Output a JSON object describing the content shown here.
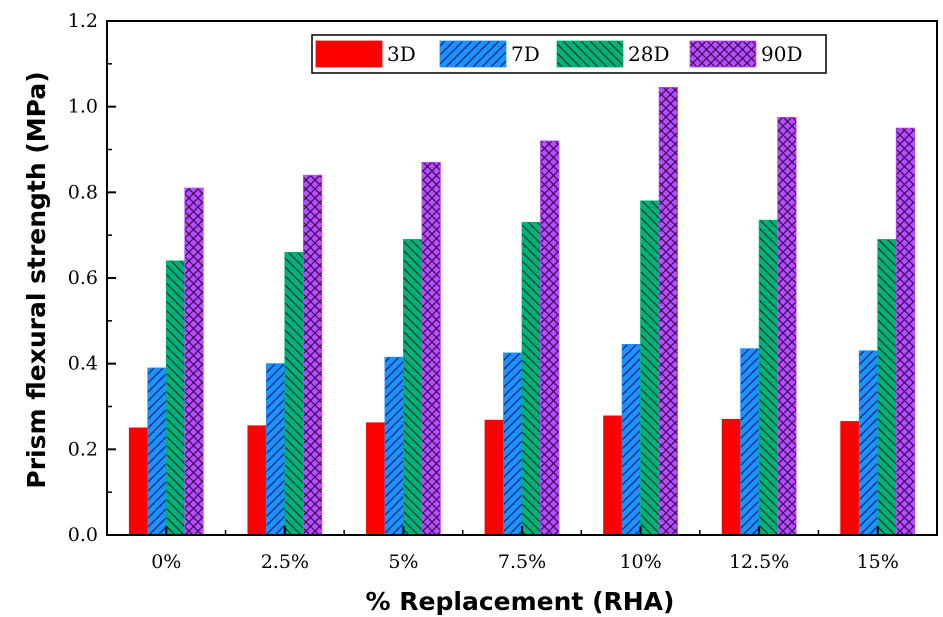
{
  "chart_data": {
    "type": "bar",
    "xlabel": "% Replacement (RHA)",
    "ylabel": "Prism flexural strength (MPa)",
    "categories": [
      "0%",
      "2.5%",
      "5%",
      "7.5%",
      "10%",
      "12.5%",
      "15%"
    ],
    "ylim": [
      0,
      1.2
    ],
    "yticks": [
      "0.0",
      "0.2",
      "0.4",
      "0.6",
      "0.8",
      "1.0",
      "1.2"
    ],
    "grid": false,
    "legend_position": "top-right",
    "series": [
      {
        "name": "3D",
        "color": "#ff0000",
        "pattern": "solid",
        "values": [
          0.25,
          0.255,
          0.262,
          0.268,
          0.278,
          0.27,
          0.265
        ]
      },
      {
        "name": "7D",
        "color": "#1e90ff",
        "pattern": "diagonal-forward",
        "values": [
          0.39,
          0.4,
          0.415,
          0.425,
          0.445,
          0.435,
          0.43
        ]
      },
      {
        "name": "28D",
        "color": "#00b27a",
        "pattern": "diagonal-back",
        "values": [
          0.64,
          0.66,
          0.69,
          0.73,
          0.78,
          0.735,
          0.69
        ]
      },
      {
        "name": "90D",
        "color": "#b84dff",
        "pattern": "crosshatch",
        "values": [
          0.81,
          0.84,
          0.87,
          0.92,
          1.045,
          0.975,
          0.95
        ]
      }
    ]
  }
}
